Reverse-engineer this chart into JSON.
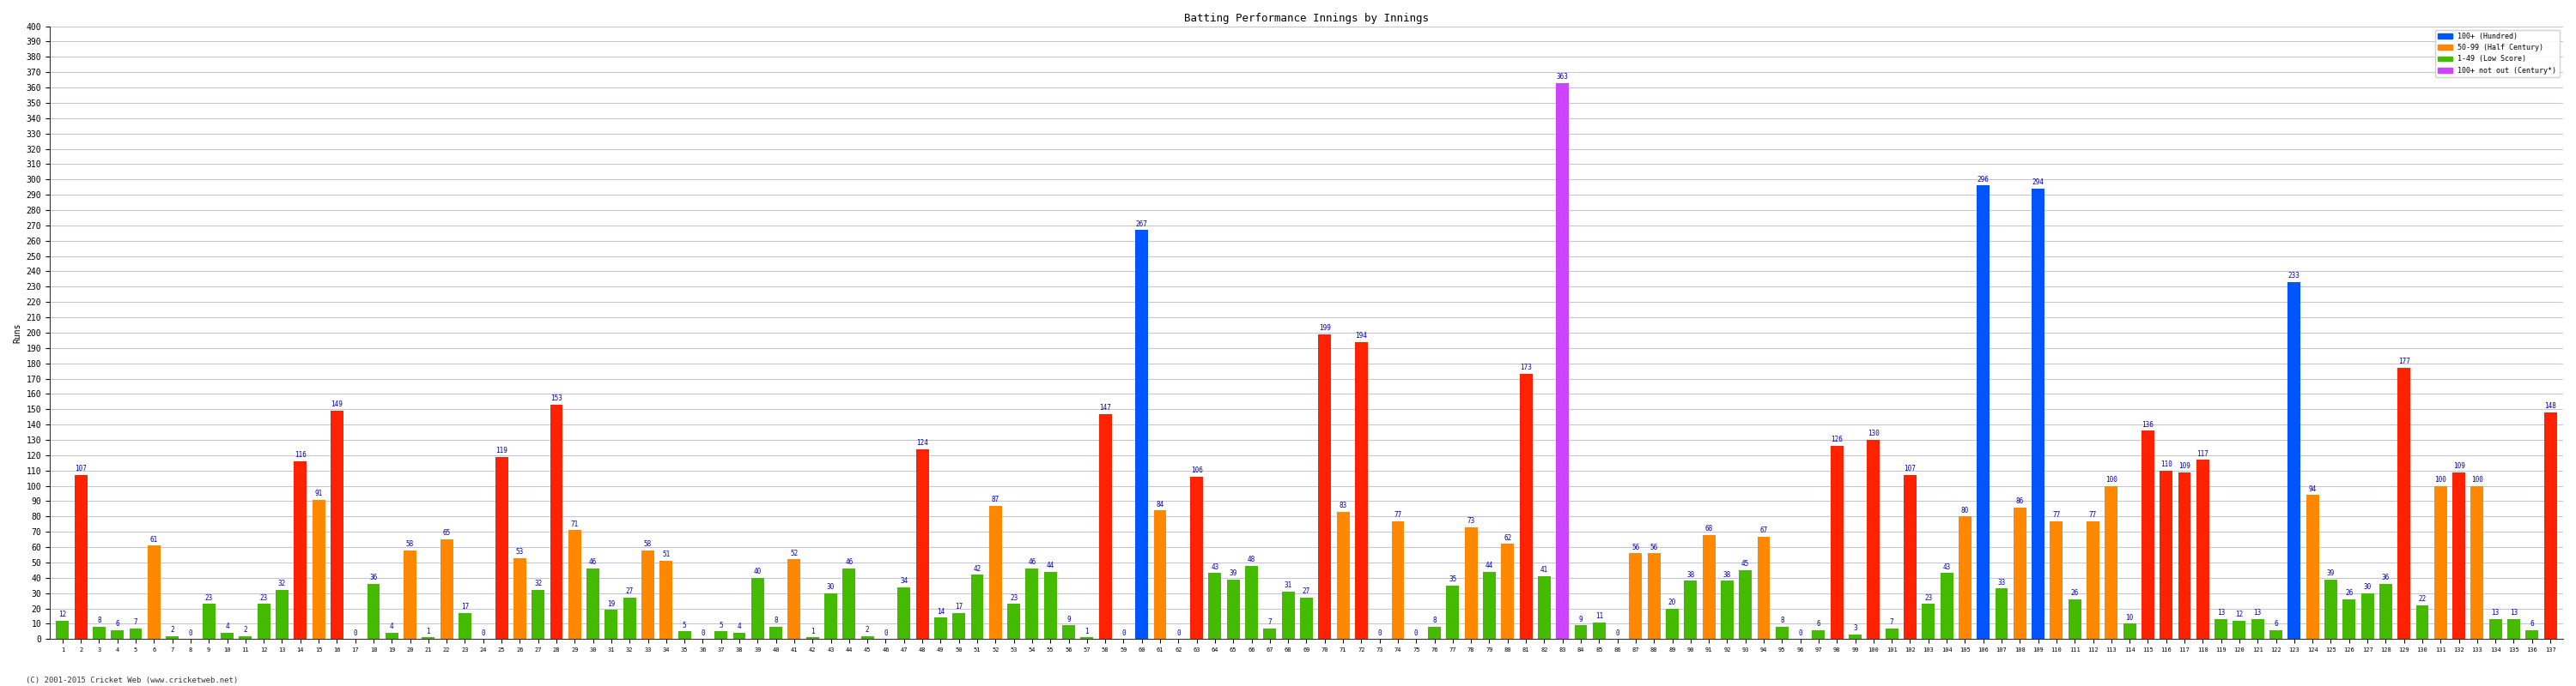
{
  "title": "Batting Performance Innings by Innings",
  "ylabel": "Runs",
  "xlabel": "",
  "footer": "(C) 2001-2015 Cricket Web (www.cricketweb.net)",
  "ylim": [
    0,
    400
  ],
  "yticks": [
    0,
    10,
    20,
    30,
    40,
    50,
    60,
    70,
    80,
    90,
    100,
    110,
    120,
    130,
    140,
    150,
    160,
    170,
    180,
    190,
    200,
    210,
    220,
    230,
    240,
    250,
    260,
    270,
    280,
    290,
    300,
    310,
    320,
    330,
    340,
    350,
    360,
    370,
    380,
    390,
    400
  ],
  "innings": [
    {
      "num": 1,
      "runs": 12,
      "color": "#44bb00"
    },
    {
      "num": 2,
      "runs": 107,
      "color": "#ff2200"
    },
    {
      "num": 3,
      "runs": 8,
      "color": "#44bb00"
    },
    {
      "num": 4,
      "runs": 6,
      "color": "#44bb00"
    },
    {
      "num": 5,
      "runs": 7,
      "color": "#44bb00"
    },
    {
      "num": 6,
      "runs": 61,
      "color": "#ff8800"
    },
    {
      "num": 7,
      "runs": 2,
      "color": "#44bb00"
    },
    {
      "num": 8,
      "runs": 0,
      "color": "#44bb00"
    },
    {
      "num": 9,
      "runs": 23,
      "color": "#44bb00"
    },
    {
      "num": 10,
      "runs": 4,
      "color": "#44bb00"
    },
    {
      "num": 11,
      "runs": 2,
      "color": "#44bb00"
    },
    {
      "num": 12,
      "runs": 23,
      "color": "#44bb00"
    },
    {
      "num": 13,
      "runs": 32,
      "color": "#44bb00"
    },
    {
      "num": 14,
      "runs": 116,
      "color": "#ff2200"
    },
    {
      "num": 15,
      "runs": 91,
      "color": "#ff8800"
    },
    {
      "num": 16,
      "runs": 149,
      "color": "#ff2200"
    },
    {
      "num": 17,
      "runs": 0,
      "color": "#44bb00"
    },
    {
      "num": 18,
      "runs": 36,
      "color": "#44bb00"
    },
    {
      "num": 19,
      "runs": 4,
      "color": "#44bb00"
    },
    {
      "num": 20,
      "runs": 58,
      "color": "#ff8800"
    },
    {
      "num": 21,
      "runs": 1,
      "color": "#44bb00"
    },
    {
      "num": 22,
      "runs": 65,
      "color": "#ff8800"
    },
    {
      "num": 23,
      "runs": 17,
      "color": "#44bb00"
    },
    {
      "num": 24,
      "runs": 0,
      "color": "#44bb00"
    },
    {
      "num": 25,
      "runs": 119,
      "color": "#ff2200"
    },
    {
      "num": 26,
      "runs": 53,
      "color": "#ff8800"
    },
    {
      "num": 27,
      "runs": 32,
      "color": "#44bb00"
    },
    {
      "num": 28,
      "runs": 153,
      "color": "#ff2200"
    },
    {
      "num": 29,
      "runs": 71,
      "color": "#ff8800"
    },
    {
      "num": 30,
      "runs": 46,
      "color": "#44bb00"
    },
    {
      "num": 31,
      "runs": 19,
      "color": "#44bb00"
    },
    {
      "num": 32,
      "runs": 27,
      "color": "#44bb00"
    },
    {
      "num": 33,
      "runs": 58,
      "color": "#ff8800"
    },
    {
      "num": 34,
      "runs": 51,
      "color": "#ff8800"
    },
    {
      "num": 35,
      "runs": 5,
      "color": "#44bb00"
    },
    {
      "num": 36,
      "runs": 0,
      "color": "#44bb00"
    },
    {
      "num": 37,
      "runs": 5,
      "color": "#44bb00"
    },
    {
      "num": 38,
      "runs": 4,
      "color": "#44bb00"
    },
    {
      "num": 39,
      "runs": 40,
      "color": "#44bb00"
    },
    {
      "num": 40,
      "runs": 8,
      "color": "#44bb00"
    },
    {
      "num": 41,
      "runs": 52,
      "color": "#ff8800"
    },
    {
      "num": 42,
      "runs": 1,
      "color": "#44bb00"
    },
    {
      "num": 43,
      "runs": 30,
      "color": "#44bb00"
    },
    {
      "num": 44,
      "runs": 46,
      "color": "#44bb00"
    },
    {
      "num": 45,
      "runs": 2,
      "color": "#44bb00"
    },
    {
      "num": 46,
      "runs": 0,
      "color": "#44bb00"
    },
    {
      "num": 47,
      "runs": 34,
      "color": "#44bb00"
    },
    {
      "num": 48,
      "runs": 124,
      "color": "#ff2200"
    },
    {
      "num": 49,
      "runs": 14,
      "color": "#44bb00"
    },
    {
      "num": 50,
      "runs": 17,
      "color": "#44bb00"
    },
    {
      "num": 51,
      "runs": 42,
      "color": "#44bb00"
    },
    {
      "num": 52,
      "runs": 87,
      "color": "#ff8800"
    },
    {
      "num": 53,
      "runs": 23,
      "color": "#44bb00"
    },
    {
      "num": 54,
      "runs": 46,
      "color": "#44bb00"
    },
    {
      "num": 55,
      "runs": 44,
      "color": "#44bb00"
    },
    {
      "num": 56,
      "runs": 9,
      "color": "#44bb00"
    },
    {
      "num": 57,
      "runs": 1,
      "color": "#44bb00"
    },
    {
      "num": 58,
      "runs": 147,
      "color": "#ff2200"
    },
    {
      "num": 59,
      "runs": 0,
      "color": "#44bb00"
    },
    {
      "num": 60,
      "runs": 267,
      "color": "#0055ff"
    },
    {
      "num": 61,
      "runs": 84,
      "color": "#ff8800"
    },
    {
      "num": 62,
      "runs": 0,
      "color": "#44bb00"
    },
    {
      "num": 63,
      "runs": 106,
      "color": "#ff2200"
    },
    {
      "num": 64,
      "runs": 43,
      "color": "#44bb00"
    },
    {
      "num": 65,
      "runs": 39,
      "color": "#44bb00"
    },
    {
      "num": 66,
      "runs": 48,
      "color": "#44bb00"
    },
    {
      "num": 67,
      "runs": 7,
      "color": "#44bb00"
    },
    {
      "num": 68,
      "runs": 31,
      "color": "#44bb00"
    },
    {
      "num": 69,
      "runs": 27,
      "color": "#44bb00"
    },
    {
      "num": 70,
      "runs": 199,
      "color": "#ff2200"
    },
    {
      "num": 71,
      "runs": 83,
      "color": "#ff8800"
    },
    {
      "num": 72,
      "runs": 194,
      "color": "#ff2200"
    },
    {
      "num": 73,
      "runs": 0,
      "color": "#44bb00"
    },
    {
      "num": 74,
      "runs": 77,
      "color": "#ff8800"
    },
    {
      "num": 75,
      "runs": 0,
      "color": "#44bb00"
    },
    {
      "num": 76,
      "runs": 8,
      "color": "#44bb00"
    },
    {
      "num": 77,
      "runs": 35,
      "color": "#44bb00"
    },
    {
      "num": 78,
      "runs": 73,
      "color": "#ff8800"
    },
    {
      "num": 79,
      "runs": 44,
      "color": "#44bb00"
    },
    {
      "num": 80,
      "runs": 62,
      "color": "#ff8800"
    },
    {
      "num": 81,
      "runs": 173,
      "color": "#ff2200"
    },
    {
      "num": 82,
      "runs": 41,
      "color": "#44bb00"
    },
    {
      "num": 83,
      "runs": 363,
      "color": "#cc44ff"
    },
    {
      "num": 84,
      "runs": 9,
      "color": "#44bb00"
    },
    {
      "num": 85,
      "runs": 11,
      "color": "#44bb00"
    },
    {
      "num": 86,
      "runs": 0,
      "color": "#44bb00"
    },
    {
      "num": 87,
      "runs": 56,
      "color": "#ff8800"
    },
    {
      "num": 88,
      "runs": 56,
      "color": "#ff8800"
    },
    {
      "num": 89,
      "runs": 20,
      "color": "#44bb00"
    },
    {
      "num": 90,
      "runs": 38,
      "color": "#44bb00"
    },
    {
      "num": 91,
      "runs": 68,
      "color": "#ff8800"
    },
    {
      "num": 92,
      "runs": 38,
      "color": "#44bb00"
    },
    {
      "num": 93,
      "runs": 45,
      "color": "#44bb00"
    },
    {
      "num": 94,
      "runs": 67,
      "color": "#ff8800"
    },
    {
      "num": 95,
      "runs": 8,
      "color": "#44bb00"
    },
    {
      "num": 96,
      "runs": 0,
      "color": "#44bb00"
    },
    {
      "num": 97,
      "runs": 6,
      "color": "#44bb00"
    },
    {
      "num": 98,
      "runs": 126,
      "color": "#ff2200"
    },
    {
      "num": 99,
      "runs": 3,
      "color": "#44bb00"
    },
    {
      "num": 100,
      "runs": 130,
      "color": "#ff2200"
    },
    {
      "num": 101,
      "runs": 7,
      "color": "#44bb00"
    },
    {
      "num": 102,
      "runs": 107,
      "color": "#ff2200"
    },
    {
      "num": 103,
      "runs": 23,
      "color": "#44bb00"
    },
    {
      "num": 104,
      "runs": 43,
      "color": "#44bb00"
    },
    {
      "num": 105,
      "runs": 80,
      "color": "#ff8800"
    },
    {
      "num": 106,
      "runs": 296,
      "color": "#0055ff"
    },
    {
      "num": 107,
      "runs": 33,
      "color": "#44bb00"
    },
    {
      "num": 108,
      "runs": 86,
      "color": "#ff8800"
    },
    {
      "num": 109,
      "runs": 294,
      "color": "#0055ff"
    },
    {
      "num": 110,
      "runs": 77,
      "color": "#ff8800"
    },
    {
      "num": 111,
      "runs": 26,
      "color": "#44bb00"
    },
    {
      "num": 112,
      "runs": 77,
      "color": "#ff8800"
    },
    {
      "num": 113,
      "runs": 100,
      "color": "#ff8800"
    },
    {
      "num": 114,
      "runs": 10,
      "color": "#44bb00"
    },
    {
      "num": 115,
      "runs": 136,
      "color": "#ff2200"
    },
    {
      "num": 116,
      "runs": 110,
      "color": "#ff2200"
    },
    {
      "num": 117,
      "runs": 109,
      "color": "#ff2200"
    },
    {
      "num": 118,
      "runs": 117,
      "color": "#ff2200"
    },
    {
      "num": 119,
      "runs": 13,
      "color": "#44bb00"
    },
    {
      "num": 120,
      "runs": 12,
      "color": "#44bb00"
    },
    {
      "num": 121,
      "runs": 13,
      "color": "#44bb00"
    },
    {
      "num": 122,
      "runs": 6,
      "color": "#44bb00"
    },
    {
      "num": 123,
      "runs": 233,
      "color": "#0055ff"
    },
    {
      "num": 124,
      "runs": 94,
      "color": "#ff8800"
    },
    {
      "num": 125,
      "runs": 39,
      "color": "#44bb00"
    },
    {
      "num": 126,
      "runs": 26,
      "color": "#44bb00"
    },
    {
      "num": 127,
      "runs": 30,
      "color": "#44bb00"
    },
    {
      "num": 128,
      "runs": 36,
      "color": "#44bb00"
    },
    {
      "num": 129,
      "runs": 177,
      "color": "#ff2200"
    },
    {
      "num": 130,
      "runs": 22,
      "color": "#44bb00"
    },
    {
      "num": 131,
      "runs": 100,
      "color": "#ff8800"
    },
    {
      "num": 132,
      "runs": 109,
      "color": "#ff2200"
    },
    {
      "num": 133,
      "runs": 100,
      "color": "#ff8800"
    },
    {
      "num": 134,
      "runs": 13,
      "color": "#44bb00"
    },
    {
      "num": 135,
      "runs": 13,
      "color": "#44bb00"
    },
    {
      "num": 136,
      "runs": 6,
      "color": "#44bb00"
    },
    {
      "num": 137,
      "runs": 148,
      "color": "#ff2200"
    }
  ],
  "legend": [
    {
      "label": "100+ (Hundred)",
      "color": "#0055ff"
    },
    {
      "label": "50-99 (Half Century)",
      "color": "#ff8800"
    },
    {
      "label": "1-49 (Low Score)",
      "color": "#44bb00"
    },
    {
      "label": "100+ not out (Century*)",
      "color": "#cc44ff"
    }
  ],
  "bg_color": "#ffffff",
  "grid_color": "#aaaacc",
  "bar_width": 0.7,
  "title_fontsize": 9,
  "axis_fontsize": 7,
  "value_fontsize": 5.5
}
